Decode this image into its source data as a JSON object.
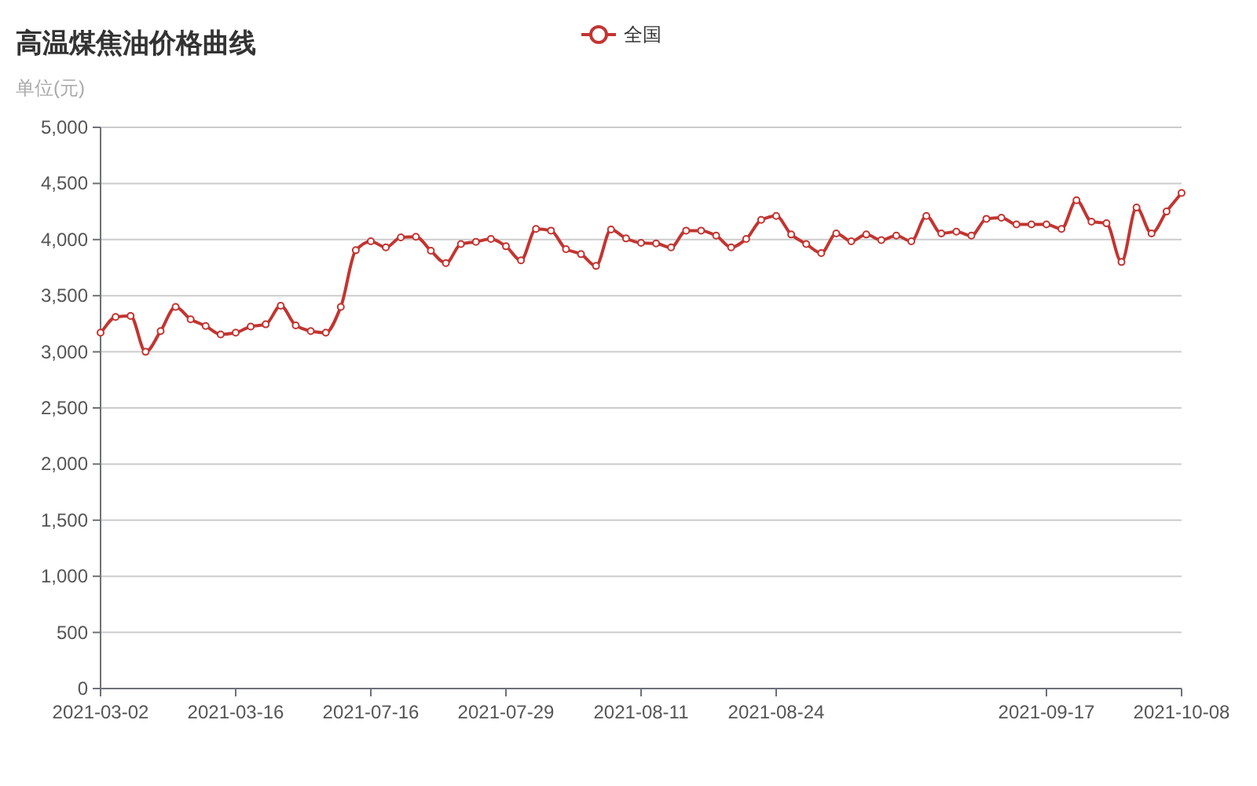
{
  "chart_data": {
    "type": "line",
    "title": "高温煤焦油价格曲线",
    "subtitle": "单位(元)",
    "categories": [
      "2021-03-02",
      null,
      null,
      null,
      null,
      null,
      null,
      null,
      null,
      "2021-03-16",
      null,
      null,
      null,
      null,
      null,
      null,
      null,
      null,
      "2021-07-16",
      null,
      null,
      null,
      null,
      null,
      null,
      null,
      null,
      "2021-07-29",
      null,
      null,
      null,
      null,
      null,
      null,
      null,
      null,
      "2021-08-11",
      null,
      null,
      null,
      null,
      null,
      null,
      null,
      null,
      "2021-08-24",
      null,
      null,
      null,
      null,
      null,
      null,
      null,
      null,
      null,
      null,
      null,
      null,
      null,
      null,
      null,
      null,
      null,
      "2021-09-17",
      null,
      null,
      null,
      null,
      null,
      null,
      null,
      null,
      "2021-10-08"
    ],
    "series": [
      {
        "name": "全国",
        "color": "#c23531",
        "values": [
          3170,
          3310,
          3320,
          3000,
          3185,
          3400,
          3290,
          3230,
          3155,
          3170,
          3225,
          3245,
          3410,
          3235,
          3185,
          3170,
          3400,
          3905,
          3985,
          3930,
          4020,
          4025,
          3900,
          3790,
          3960,
          3980,
          4005,
          3940,
          3815,
          4095,
          4080,
          3915,
          3870,
          3765,
          4090,
          4010,
          3970,
          3965,
          3930,
          4080,
          4080,
          4035,
          3930,
          4005,
          4175,
          4210,
          4045,
          3960,
          3880,
          4055,
          3985,
          4045,
          3995,
          4035,
          3985,
          4210,
          4055,
          4070,
          4035,
          4185,
          4195,
          4135,
          4135,
          4135,
          4095,
          4350,
          4160,
          4145,
          3800,
          4285,
          4055,
          4250,
          4415
        ]
      }
    ],
    "ylim": [
      0,
      5000
    ],
    "yticks": [
      0,
      {
        "value": 500,
        "label": "500"
      },
      {
        "value": 1000,
        "label": "1,000"
      },
      {
        "value": 1500,
        "label": "1,500"
      },
      {
        "value": 2000,
        "label": "2,000"
      },
      {
        "value": 2500,
        "label": "2,500"
      },
      {
        "value": 3000,
        "label": "3,000"
      },
      {
        "value": 3500,
        "label": "3,500"
      },
      {
        "value": 4000,
        "label": "4,000"
      },
      {
        "value": 4500,
        "label": "4,500"
      },
      {
        "value": 5000,
        "label": "5,000"
      }
    ],
    "grid": "y",
    "legend": "top",
    "marker": "circle",
    "line_style": "solid"
  }
}
